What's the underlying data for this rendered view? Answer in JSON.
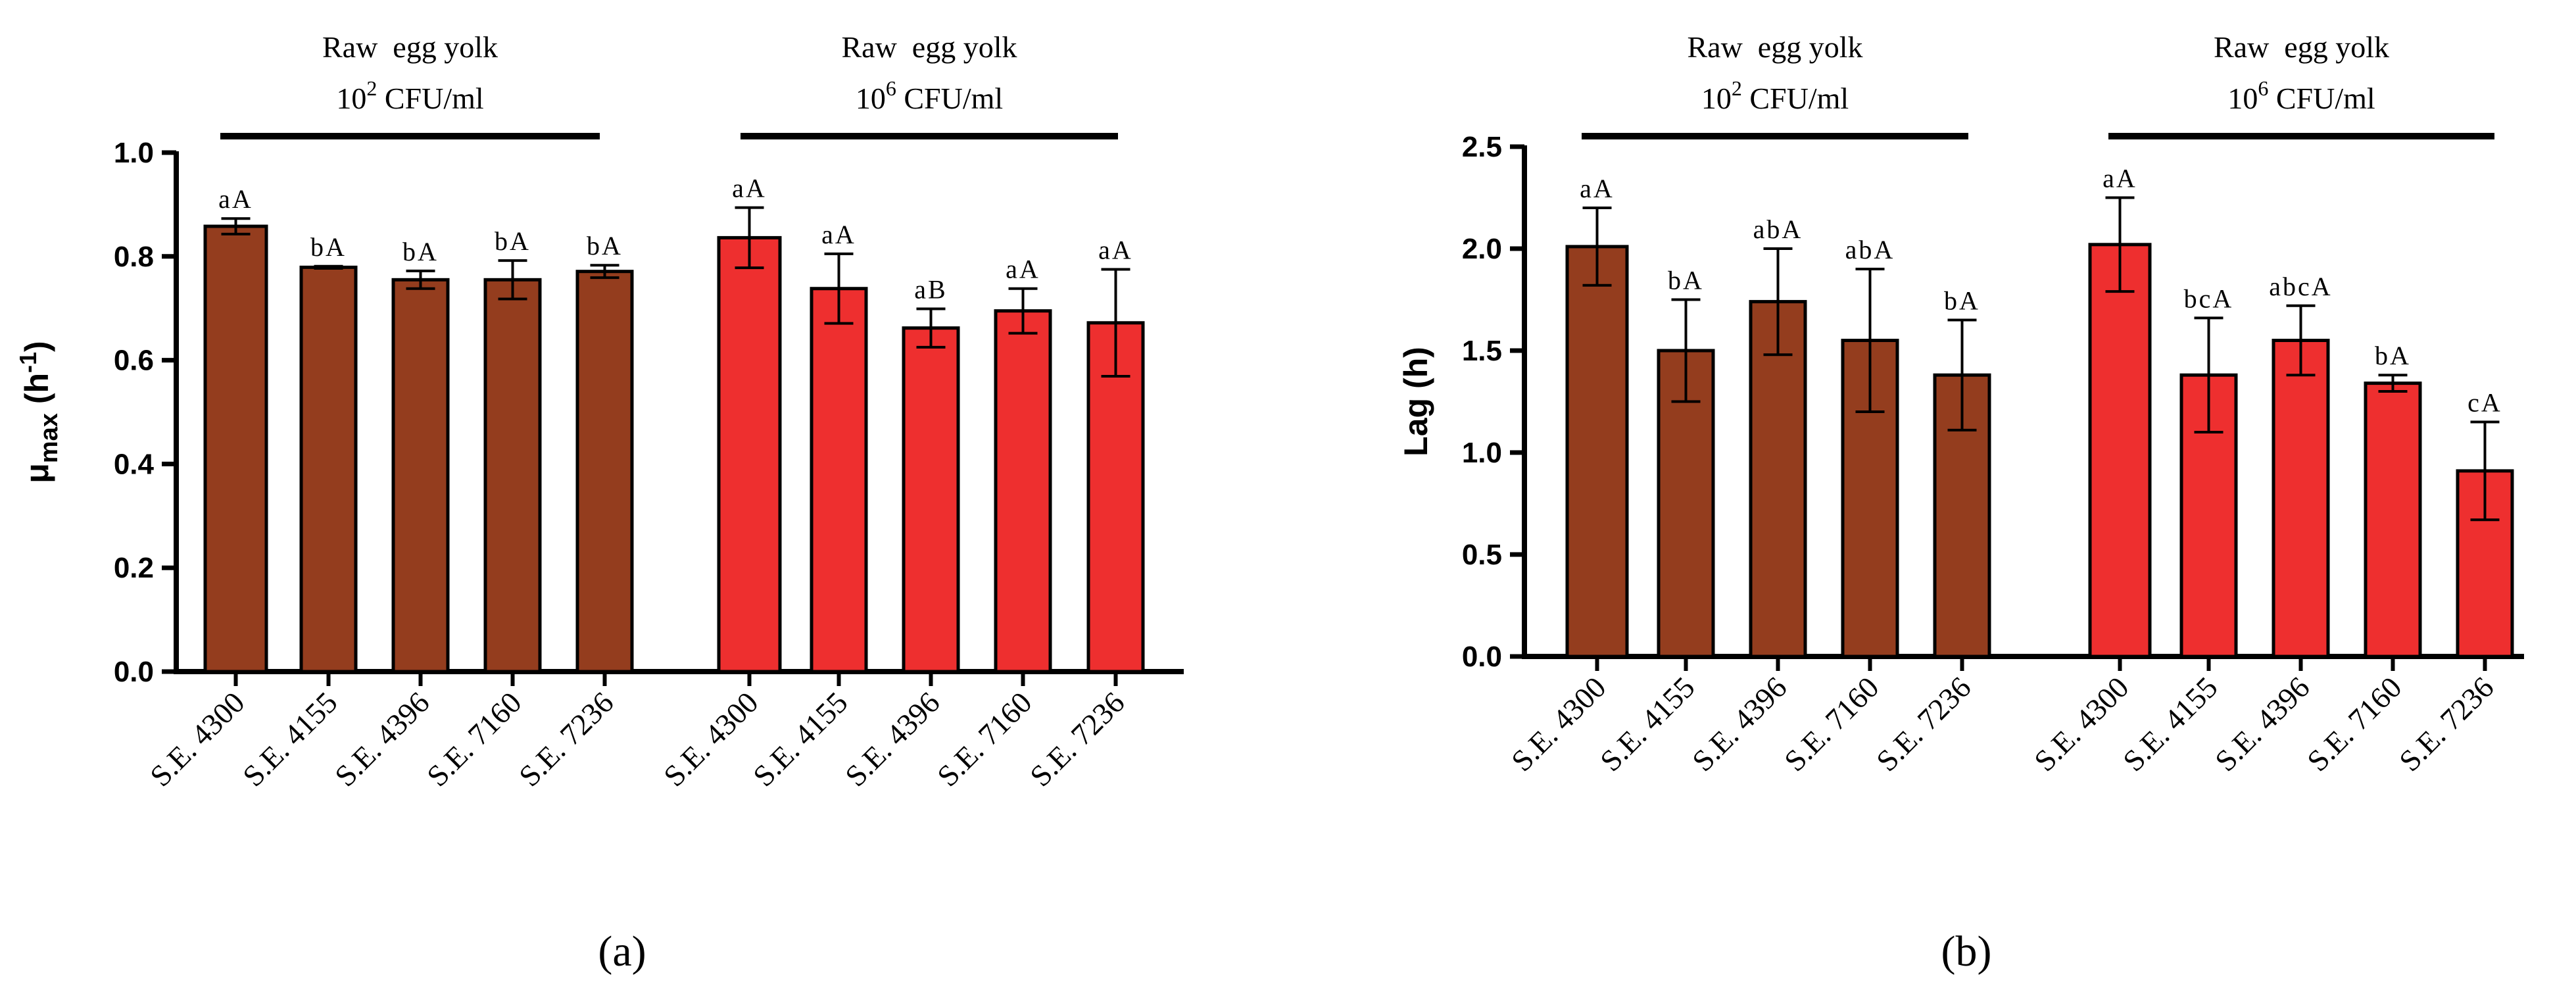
{
  "colors": {
    "low_dose": "#943d1e",
    "high_dose": "#ee2f2f",
    "axis": "#000000"
  },
  "chart_data": [
    {
      "panel_label": "(a)",
      "type": "bar",
      "ylabel": {
        "main": "μ",
        "sub": "max",
        "unit_open": " (h",
        "unit_sup": "-1",
        "unit_close": ")"
      },
      "ylim": [
        0,
        1.0
      ],
      "yticks": [
        "0.0",
        "0.2",
        "0.4",
        "0.6",
        "0.8",
        "1.0"
      ],
      "ytick_values": [
        0,
        0.2,
        0.4,
        0.6,
        0.8,
        1.0
      ],
      "groups": [
        {
          "title": "Raw  egg yolk",
          "dose_base": "10",
          "dose_exp": "2",
          "dose_unit": " CFU/ml",
          "color": "#943d1e",
          "categories": [
            "S.E. 4300",
            "S.E. 4155",
            "S.E. 4396",
            "S.E. 7160",
            "S.E. 7236"
          ],
          "values": [
            0.858,
            0.779,
            0.755,
            0.755,
            0.771
          ],
          "errors": [
            0.015,
            0.002,
            0.017,
            0.037,
            0.012
          ],
          "letters": [
            "aA",
            "bA",
            "bA",
            "bA",
            "bA"
          ]
        },
        {
          "title": "Raw  egg yolk",
          "dose_base": "10",
          "dose_exp": "6",
          "dose_unit": " CFU/ml",
          "color": "#ee2f2f",
          "categories": [
            "S.E. 4300",
            "S.E. 4155",
            "S.E. 4396",
            "S.E. 7160",
            "S.E. 7236"
          ],
          "values": [
            0.836,
            0.738,
            0.662,
            0.695,
            0.672
          ],
          "errors": [
            0.058,
            0.067,
            0.037,
            0.043,
            0.103
          ],
          "letters": [
            "aA",
            "aA",
            "aB",
            "aA",
            "aA"
          ]
        }
      ]
    },
    {
      "panel_label": "(b)",
      "type": "bar",
      "ylabel": {
        "main": "Lag (h)"
      },
      "ylim": [
        0,
        2.5
      ],
      "yticks": [
        "0.0",
        "0.5",
        "1.0",
        "1.5",
        "2.0",
        "2.5"
      ],
      "ytick_values": [
        0,
        0.5,
        1.0,
        1.5,
        2.0,
        2.5
      ],
      "groups": [
        {
          "title": "Raw  egg yolk",
          "dose_base": "10",
          "dose_exp": "2",
          "dose_unit": " CFU/ml",
          "color": "#943d1e",
          "categories": [
            "S.E. 4300",
            "S.E. 4155",
            "S.E. 4396",
            "S.E. 7160",
            "S.E. 7236"
          ],
          "values": [
            2.01,
            1.5,
            1.74,
            1.55,
            1.38
          ],
          "errors": [
            0.19,
            0.25,
            0.26,
            0.35,
            0.27
          ],
          "letters": [
            "aA",
            "bA",
            "abA",
            "abA",
            "bA"
          ]
        },
        {
          "title": "Raw  egg yolk",
          "dose_base": "10",
          "dose_exp": "6",
          "dose_unit": " CFU/ml",
          "color": "#ee2f2f",
          "categories": [
            "S.E. 4300",
            "S.E. 4155",
            "S.E. 4396",
            "S.E. 7160",
            "S.E. 7236"
          ],
          "values": [
            2.02,
            1.38,
            1.55,
            1.34,
            0.91
          ],
          "errors": [
            0.23,
            0.28,
            0.17,
            0.04,
            0.24
          ],
          "letters": [
            "aA",
            "bcA",
            "abcA",
            "bA",
            "cA"
          ]
        }
      ]
    }
  ]
}
